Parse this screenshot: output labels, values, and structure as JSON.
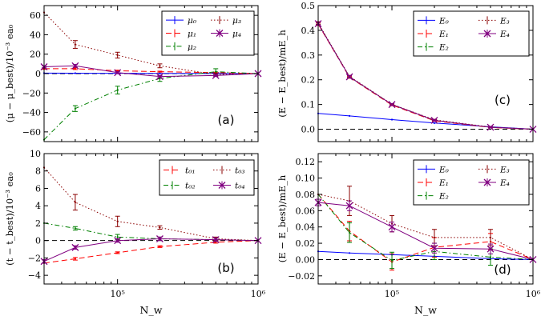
{
  "chart_data": [
    {
      "type": "line",
      "panel_label": "(a)",
      "ylabel": "(μ − μ_best)/10⁻³ ea₀",
      "xlabel": "",
      "xscale": "log",
      "xlim": [
        30000,
        1000000
      ],
      "ylim": [
        -70,
        70
      ],
      "yticks": [
        -60,
        -40,
        -20,
        0,
        20,
        40,
        60
      ],
      "ytick_labels": [
        "−60",
        "−40",
        "−20",
        "0",
        "20",
        "40",
        "60"
      ],
      "xtick_labels": [],
      "hline": 0,
      "legend": "top-right",
      "series": [
        {
          "name": "μ₀",
          "color": "#0000ff",
          "style": "solid",
          "marker": "none",
          "x": [
            30000,
            50000,
            100000,
            200000,
            500000,
            1000000
          ],
          "values": [
            0.5,
            0.4,
            0.3,
            0.2,
            0.1,
            0
          ],
          "errors": [
            0,
            0,
            0,
            0,
            0,
            0
          ]
        },
        {
          "name": "μ₁",
          "color": "#ff0000",
          "style": "dashed",
          "marker": "none",
          "x": [
            30000,
            50000,
            100000,
            200000,
            500000,
            1000000
          ],
          "values": [
            5,
            5,
            3,
            2,
            1,
            0
          ],
          "errors": [
            0.5,
            0.8,
            0.5,
            0.5,
            0.5,
            0
          ]
        },
        {
          "name": "μ₂",
          "color": "#008000",
          "style": "dashdot",
          "marker": "none",
          "x": [
            30000,
            50000,
            100000,
            200000,
            500000,
            1000000
          ],
          "values": [
            -68,
            -36,
            -17,
            -5,
            2,
            0
          ],
          "errors": [
            0,
            3,
            4,
            3,
            3,
            0
          ]
        },
        {
          "name": "μ₃",
          "color": "#8b0000",
          "style": "dotted",
          "marker": "none",
          "x": [
            30000,
            50000,
            100000,
            200000,
            500000,
            1000000
          ],
          "values": [
            63,
            30,
            19,
            8,
            -1,
            0
          ],
          "errors": [
            0,
            4,
            3,
            2,
            1.5,
            0
          ]
        },
        {
          "name": "μ₄",
          "color": "#800080",
          "style": "solid",
          "marker": "x",
          "x": [
            30000,
            50000,
            100000,
            200000,
            500000,
            1000000
          ],
          "values": [
            7,
            8,
            1,
            -3,
            -2,
            0
          ],
          "errors": [
            1,
            1.5,
            1,
            1,
            1,
            0
          ]
        }
      ]
    },
    {
      "type": "line",
      "panel_label": "(c)",
      "ylabel": "(E − E_best)/mE_h",
      "xlabel": "",
      "xscale": "log",
      "xlim": [
        30000,
        1000000
      ],
      "ylim": [
        -0.05,
        0.5
      ],
      "yticks": [
        0,
        0.1,
        0.2,
        0.3,
        0.4,
        0.5
      ],
      "ytick_labels": [
        "0.0",
        "0.1",
        "0.2",
        "0.3",
        "0.4",
        "0.5"
      ],
      "xtick_labels": [],
      "hline": 0,
      "legend": "top-right",
      "series": [
        {
          "name": "E₀",
          "color": "#0000ff",
          "style": "solid",
          "marker": "none",
          "x": [
            30000,
            50000,
            100000,
            200000,
            500000,
            1000000
          ],
          "values": [
            0.064,
            0.054,
            0.039,
            0.025,
            0.01,
            0
          ],
          "errors": [
            0,
            0,
            0,
            0,
            0,
            0
          ]
        },
        {
          "name": "E₁",
          "color": "#ff0000",
          "style": "dashed",
          "marker": "none",
          "x": [
            30000,
            50000,
            100000,
            200000,
            500000,
            1000000
          ],
          "values": [
            0.425,
            0.21,
            0.098,
            0.034,
            0.007,
            0
          ],
          "errors": [
            0.005,
            0.004,
            0.003,
            0.002,
            0.002,
            0
          ]
        },
        {
          "name": "E₂",
          "color": "#008000",
          "style": "dashdot",
          "marker": "none",
          "x": [
            30000,
            50000,
            100000,
            200000,
            500000,
            1000000
          ],
          "values": [
            0.428,
            0.212,
            0.1,
            0.036,
            0.008,
            0
          ],
          "errors": [
            0.005,
            0.004,
            0.003,
            0.002,
            0.002,
            0
          ]
        },
        {
          "name": "E₃",
          "color": "#8b0000",
          "style": "dotted",
          "marker": "none",
          "x": [
            30000,
            50000,
            100000,
            200000,
            500000,
            1000000
          ],
          "values": [
            0.43,
            0.214,
            0.101,
            0.038,
            0.009,
            0
          ],
          "errors": [
            0.005,
            0.004,
            0.003,
            0.002,
            0.002,
            0
          ]
        },
        {
          "name": "E₄",
          "color": "#800080",
          "style": "solid",
          "marker": "x",
          "x": [
            30000,
            50000,
            100000,
            200000,
            500000,
            1000000
          ],
          "values": [
            0.427,
            0.212,
            0.1,
            0.036,
            0.008,
            0
          ],
          "errors": [
            0.005,
            0.004,
            0.003,
            0.002,
            0.002,
            0
          ]
        }
      ]
    },
    {
      "type": "line",
      "panel_label": "(b)",
      "ylabel": "(t − t_best)/10⁻³ ea₀",
      "xlabel": "N_w",
      "xscale": "log",
      "xlim": [
        30000,
        1000000
      ],
      "ylim": [
        -5,
        10
      ],
      "yticks": [
        -4,
        -2,
        0,
        2,
        4,
        6,
        8,
        10
      ],
      "ytick_labels": [
        "−4",
        "−2",
        "0",
        "2",
        "4",
        "6",
        "8",
        "10"
      ],
      "xtick_labels": [
        "10⁵",
        "10⁶"
      ],
      "hline": 0,
      "legend": "top-right",
      "series": [
        {
          "name": "t₀₁",
          "color": "#ff0000",
          "style": "dashed",
          "marker": "none",
          "x": [
            30000,
            50000,
            100000,
            200000,
            500000,
            1000000
          ],
          "values": [
            -2.6,
            -2.1,
            -1.4,
            -0.7,
            -0.2,
            0
          ],
          "errors": [
            0,
            0.15,
            0.1,
            0.1,
            0.1,
            0
          ]
        },
        {
          "name": "t₀₂",
          "color": "#008000",
          "style": "dashdot",
          "marker": "none",
          "x": [
            30000,
            50000,
            100000,
            200000,
            500000,
            1000000
          ],
          "values": [
            2.0,
            1.4,
            0.4,
            0.2,
            0.1,
            0
          ],
          "errors": [
            0,
            0.2,
            0.3,
            0.2,
            0.2,
            0
          ]
        },
        {
          "name": "t₀₃",
          "color": "#8b0000",
          "style": "dotted",
          "marker": "none",
          "x": [
            30000,
            50000,
            100000,
            200000,
            500000,
            1000000
          ],
          "values": [
            8.4,
            4.4,
            2.2,
            1.5,
            0.2,
            0
          ],
          "errors": [
            0,
            0.9,
            0.6,
            0.2,
            0.2,
            0
          ]
        },
        {
          "name": "t₀₄",
          "color": "#800080",
          "style": "solid",
          "marker": "x",
          "x": [
            30000,
            50000,
            100000,
            200000,
            500000,
            1000000
          ],
          "values": [
            -2.4,
            -0.8,
            0.0,
            0.2,
            0.1,
            0
          ],
          "errors": [
            0.2,
            0.2,
            0.2,
            0.2,
            0.2,
            0
          ]
        }
      ]
    },
    {
      "type": "line",
      "panel_label": "(d)",
      "ylabel": "(E − E_best)/mE_h",
      "xlabel": "N_w",
      "xscale": "log",
      "xlim": [
        30000,
        1000000
      ],
      "ylim": [
        -0.03,
        0.13
      ],
      "yticks": [
        -0.02,
        0,
        0.02,
        0.04,
        0.06,
        0.08,
        0.1,
        0.12
      ],
      "ytick_labels": [
        "−0.02",
        "0.00",
        "0.02",
        "0.04",
        "0.06",
        "0.08",
        "0.10",
        "0.12"
      ],
      "xtick_labels": [
        "10⁵",
        "10⁶"
      ],
      "hline": 0,
      "legend": "top-right",
      "series": [
        {
          "name": "E₀",
          "color": "#0000ff",
          "style": "solid",
          "marker": "none",
          "x": [
            30000,
            50000,
            100000,
            200000,
            500000,
            1000000
          ],
          "values": [
            0.01,
            0.008,
            0.006,
            0.004,
            0.001,
            0
          ],
          "errors": [
            0,
            0,
            0,
            0,
            0,
            0
          ]
        },
        {
          "name": "E₁",
          "color": "#ff0000",
          "style": "dashed",
          "marker": "none",
          "x": [
            30000,
            50000,
            100000,
            200000,
            500000,
            1000000
          ],
          "values": [
            0.08,
            0.035,
            -0.003,
            0.015,
            0.022,
            0
          ],
          "errors": [
            0,
            0.012,
            0.01,
            0.012,
            0.01,
            0
          ]
        },
        {
          "name": "E₂",
          "color": "#008000",
          "style": "dashdot",
          "marker": "none",
          "x": [
            30000,
            50000,
            100000,
            200000,
            500000,
            1000000
          ],
          "values": [
            0.08,
            0.033,
            -0.001,
            0.01,
            0.003,
            0
          ],
          "errors": [
            0,
            0.012,
            0.01,
            0.01,
            0.01,
            0
          ]
        },
        {
          "name": "E₃",
          "color": "#8b0000",
          "style": "dotted",
          "marker": "none",
          "x": [
            30000,
            50000,
            100000,
            200000,
            500000,
            1000000
          ],
          "values": [
            0.08,
            0.072,
            0.044,
            0.027,
            0.027,
            0
          ],
          "errors": [
            0,
            0.018,
            0.01,
            0.01,
            0.01,
            0
          ]
        },
        {
          "name": "E₄",
          "color": "#800080",
          "style": "solid",
          "marker": "x",
          "x": [
            30000,
            50000,
            100000,
            200000,
            500000,
            1000000
          ],
          "values": [
            0.07,
            0.066,
            0.04,
            0.014,
            0.013,
            0
          ],
          "errors": [
            0.004,
            0.006,
            0.006,
            0.006,
            0.006,
            0
          ]
        }
      ]
    }
  ]
}
